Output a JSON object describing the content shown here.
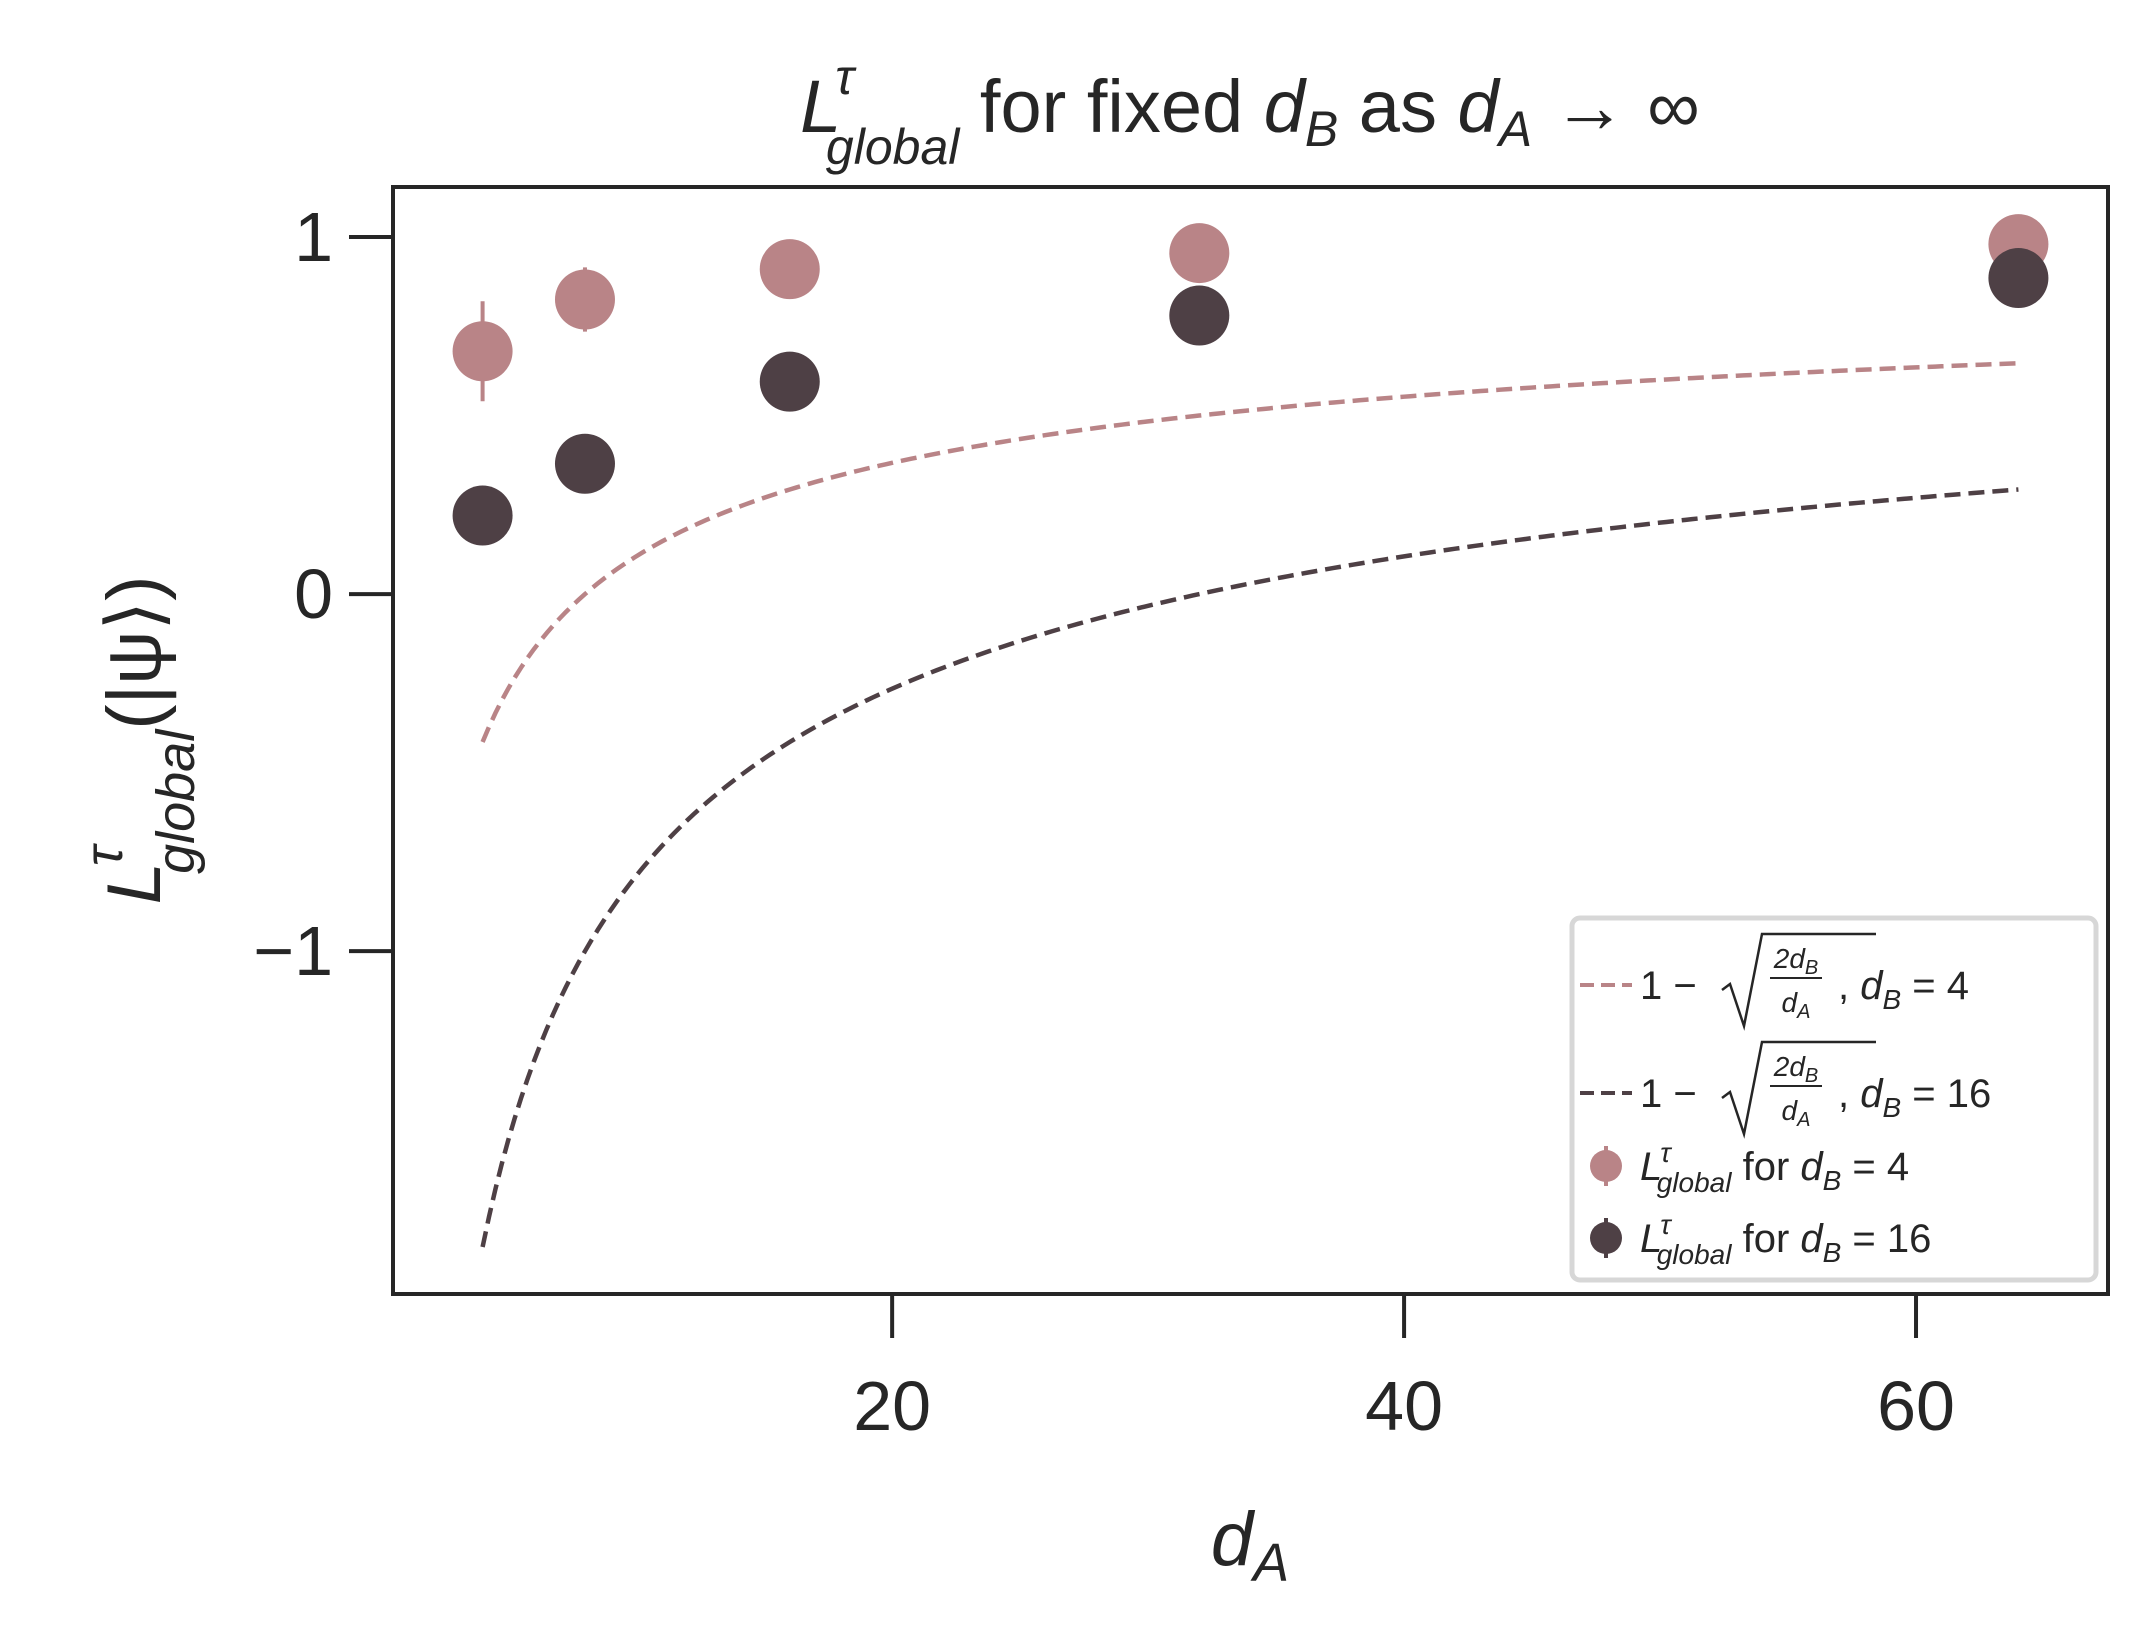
{
  "colors": {
    "series_db4": "#b98487",
    "series_db16": "#4e4045",
    "axes": "#262626",
    "legend_frame": "#d7d7d7"
  },
  "chart_data": {
    "type": "scatter",
    "title": {
      "pre": "L",
      "sup": "τ",
      "sub": "global",
      "mid": " for fixed ",
      "d1": "d",
      "d1_sub": "B",
      "mid2": " as ",
      "d2": "d",
      "d2_sub": "A",
      "arrow": " → ∞"
    },
    "xlabel": {
      "main": "d",
      "sub": "A"
    },
    "ylabel": {
      "main": "L",
      "sup": "τ",
      "sub": "global",
      "tail": "(|ψ⟩)"
    },
    "xlim": [
      0.5,
      67.5
    ],
    "ylim": [
      -1.96,
      1.14
    ],
    "xticks": [
      20,
      40,
      60
    ],
    "xtick_labels": [
      "20",
      "40",
      "60"
    ],
    "yticks": [
      1,
      0,
      -1
    ],
    "ytick_labels": [
      "1",
      "0",
      "−1"
    ],
    "grid": false,
    "legend_position": "lower-right",
    "curves": [
      {
        "formula": "1 − sqrt(2 d_B / d_A)",
        "d_B": 4,
        "style": "dashed",
        "x_range": [
          4,
          64
        ],
        "legend_label": {
          "prefix": "1 − ",
          "frac_num": "2d",
          "frac_num_sub": "B",
          "frac_den": "d",
          "frac_den_sub": "A",
          "suffix_d": "d",
          "suffix_sub": "B",
          "suffix_eq": " = 4"
        }
      },
      {
        "formula": "1 − sqrt(2 d_B / d_A)",
        "d_B": 16,
        "style": "dashed",
        "x_range": [
          4,
          64
        ],
        "legend_label": {
          "prefix": "1 − ",
          "frac_num": "2d",
          "frac_num_sub": "B",
          "frac_den": "d",
          "frac_den_sub": "A",
          "suffix_d": "d",
          "suffix_sub": "B",
          "suffix_eq": " = 16"
        }
      }
    ],
    "series": [
      {
        "d_B": 4,
        "x": [
          4,
          8,
          16,
          32,
          64
        ],
        "y": [
          0.68,
          0.825,
          0.91,
          0.955,
          0.98
        ],
        "err": [
          0.14,
          0.09,
          0.02,
          0.015,
          0.01
        ],
        "legend_label": {
          "L": "L",
          "sup": "τ",
          "sub": "global",
          "mid": " for ",
          "d": "d",
          "d_sub": "B",
          "eq": " = 4"
        }
      },
      {
        "d_B": 16,
        "x": [
          4,
          8,
          16,
          32,
          64
        ],
        "y": [
          0.22,
          0.365,
          0.595,
          0.78,
          0.885
        ],
        "err": [
          0.01,
          0.01,
          0.01,
          0.01,
          0.01
        ],
        "legend_label": {
          "L": "L",
          "sup": "τ",
          "sub": "global",
          "mid": " for ",
          "d": "d",
          "d_sub": "B",
          "eq": " = 16"
        }
      }
    ]
  }
}
